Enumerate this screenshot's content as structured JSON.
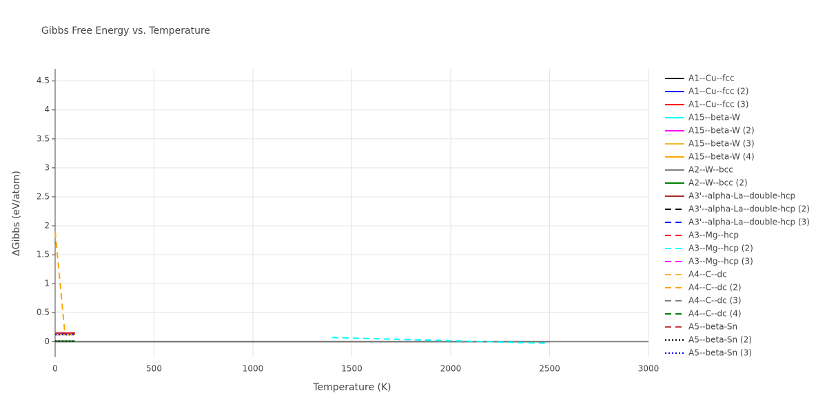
{
  "chart_data": {
    "type": "line",
    "title": "Gibbs Free Energy vs. Temperature",
    "x_label": "Temperature (K)",
    "y_label": "ΔGibbs (eV/atom)",
    "xlim": [
      0,
      3000
    ],
    "xticks": [
      0,
      500,
      1000,
      1500,
      2000,
      2500,
      3000
    ],
    "ylim": [
      -0.27,
      4.71
    ],
    "yticks": [
      0,
      0.5,
      1,
      1.5,
      2,
      2.5,
      3,
      3.5,
      4,
      4.5
    ],
    "grid": true,
    "legend": "right",
    "series": [
      {
        "name": "A1--Cu--fcc",
        "color": "#000000",
        "dash": "solid",
        "x": [
          0,
          2500
        ],
        "values": [
          0,
          0
        ]
      },
      {
        "name": "A1--Cu--fcc (2)",
        "color": "#0000ff",
        "dash": "solid",
        "x": [
          0,
          100
        ],
        "values": [
          0.13,
          0.13
        ]
      },
      {
        "name": "A1--Cu--fcc (3)",
        "color": "#ff0000",
        "dash": "solid",
        "x": [
          0,
          100
        ],
        "values": [
          0.15,
          0.15
        ]
      },
      {
        "name": "A15--beta-W",
        "color": "#00ffff",
        "dash": "solid",
        "x": [
          0,
          100
        ],
        "values": [
          0.12,
          0.12
        ]
      },
      {
        "name": "A15--beta-W (2)",
        "color": "#ff00ff",
        "dash": "solid",
        "x": [
          0,
          100
        ],
        "values": [
          0.14,
          0.14
        ]
      },
      {
        "name": "A15--beta-W (3)",
        "color": "#f5b82e",
        "dash": "solid",
        "x": [
          0,
          100
        ],
        "values": [
          0.12,
          0.12
        ]
      },
      {
        "name": "A15--beta-W (4)",
        "color": "#ffa500",
        "dash": "solid",
        "x": [
          0,
          100
        ],
        "values": [
          0.13,
          0.13
        ]
      },
      {
        "name": "A2--W--bcc",
        "color": "#808080",
        "dash": "solid",
        "x": [
          0,
          3000
        ],
        "values": [
          0,
          0
        ]
      },
      {
        "name": "A2--W--bcc (2)",
        "color": "#008000",
        "dash": "solid",
        "x": [
          0,
          100
        ],
        "values": [
          0.01,
          0.01
        ]
      },
      {
        "name": "A3'--alpha-La--double-hcp",
        "color": "#a52a2a",
        "dash": "solid",
        "x": [
          0,
          100
        ],
        "values": [
          0.14,
          0.14
        ]
      },
      {
        "name": "A3'--alpha-La--double-hcp (2)",
        "color": "#000000",
        "dash": "dash",
        "x": [
          0,
          100
        ],
        "values": [
          0.01,
          0.01
        ]
      },
      {
        "name": "A3'--alpha-La--double-hcp (3)",
        "color": "#0000ff",
        "dash": "dash",
        "x": [
          0,
          100
        ],
        "values": [
          0.12,
          0.12
        ]
      },
      {
        "name": "A3--Mg--hcp",
        "color": "#ff0000",
        "dash": "dash",
        "x": [
          0,
          100
        ],
        "values": [
          0.14,
          0.14
        ]
      },
      {
        "name": "A3--Mg--hcp (2)",
        "color": "#00ffff",
        "dash": "dash",
        "x": [
          1400,
          2500
        ],
        "values": [
          0.07,
          -0.03
        ]
      },
      {
        "name": "A3--Mg--hcp (3)",
        "color": "#ff00ff",
        "dash": "dash",
        "x": [
          0,
          100
        ],
        "values": [
          0.13,
          0.13
        ]
      },
      {
        "name": "A4--C--dc",
        "color": "#f5b82e",
        "dash": "dash",
        "x": [
          0,
          100
        ],
        "values": [
          0.12,
          0.12
        ]
      },
      {
        "name": "A4--C--dc (2)",
        "color": "#ffa500",
        "dash": "dash",
        "x": [
          0,
          50,
          100
        ],
        "values": [
          1.9,
          0.12,
          0.12
        ]
      },
      {
        "name": "A4--C--dc (3)",
        "color": "#808080",
        "dash": "dash",
        "x": [
          0,
          100
        ],
        "values": [
          0.01,
          0.01
        ]
      },
      {
        "name": "A4--C--dc (4)",
        "color": "#008000",
        "dash": "dash",
        "x": [
          0,
          100
        ],
        "values": [
          0.01,
          0.01
        ]
      },
      {
        "name": "A5--beta-Sn",
        "color": "#c83c3c",
        "dash": "dash",
        "x": [
          0,
          100
        ],
        "values": [
          0.15,
          0.15
        ]
      },
      {
        "name": "A5--beta-Sn (2)",
        "color": "#000000",
        "dash": "dot",
        "x": [
          0,
          100
        ],
        "values": [
          0.01,
          0.01
        ]
      },
      {
        "name": "A5--beta-Sn (3)",
        "color": "#0000ff",
        "dash": "dot",
        "x": [
          0,
          100
        ],
        "values": [
          0.12,
          0.12
        ]
      }
    ]
  }
}
